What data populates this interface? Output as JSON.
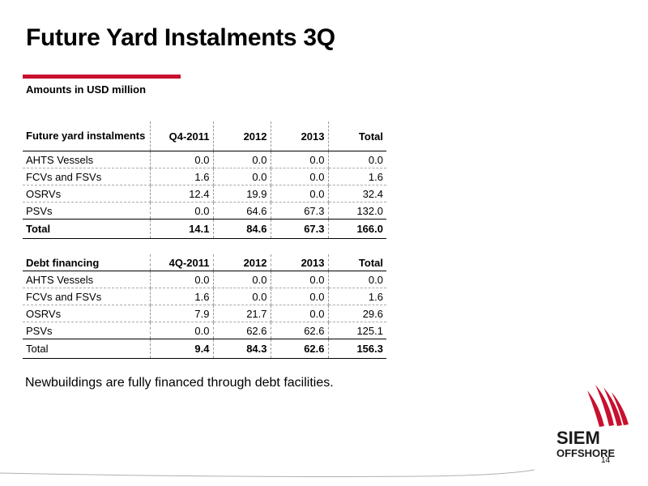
{
  "title": "Future Yard Instalments 3Q",
  "units_label": "Amounts in USD million",
  "table1": {
    "headers": [
      "Future yard instalments",
      "Q4-2011",
      "2012",
      "2013",
      "Total"
    ],
    "rows": [
      [
        "AHTS Vessels",
        "0.0",
        "0.0",
        "0.0",
        "0.0"
      ],
      [
        "FCVs and FSVs",
        "1.6",
        "0.0",
        "0.0",
        "1.6"
      ],
      [
        "OSRVs",
        "12.4",
        "19.9",
        "0.0",
        "32.4"
      ],
      [
        "PSVs",
        "0.0",
        "64.6",
        "67.3",
        "132.0"
      ]
    ],
    "total": [
      "Total",
      "14.1",
      "84.6",
      "67.3",
      "166.0"
    ]
  },
  "table2": {
    "headers": [
      "Debt financing",
      "4Q-2011",
      "2012",
      "2013",
      "Total"
    ],
    "rows": [
      [
        "AHTS Vessels",
        "0.0",
        "0.0",
        "0.0",
        "0.0"
      ],
      [
        "FCVs and FSVs",
        "1.6",
        "0.0",
        "0.0",
        "1.6"
      ],
      [
        "OSRVs",
        "7.9",
        "21.7",
        "0.0",
        "29.6"
      ],
      [
        "PSVs",
        "0.0",
        "62.6",
        "62.6",
        "125.1"
      ]
    ],
    "total": [
      "Total",
      "9.4",
      "84.3",
      "62.6",
      "156.3"
    ]
  },
  "note": "Newbuildings are fully financed through debt facilities.",
  "logo": {
    "line1": "SIEM",
    "line2": "OFFSHORE",
    "color": "#c8102e"
  },
  "page_number": "14"
}
